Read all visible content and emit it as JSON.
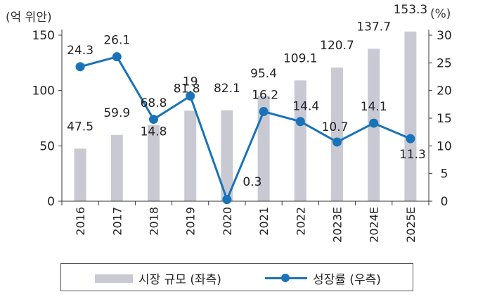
{
  "units": {
    "left": "(억 위안)",
    "right": "(%)"
  },
  "legend": {
    "bar_label": "시장 규모 (좌측)",
    "line_label": "성장률 (우측)"
  },
  "colors": {
    "bar": "#c8c9d3",
    "line": "#1a73b8",
    "axis": "#333333"
  },
  "chart_data": {
    "type": "bar+line",
    "categories": [
      "2016",
      "2017",
      "2018",
      "2019",
      "2020",
      "2021",
      "2022",
      "2023E",
      "2024E",
      "2025E"
    ],
    "series": [
      {
        "name": "시장 규모 (좌측)",
        "type": "bar",
        "axis": "left",
        "values": [
          47.5,
          59.9,
          68.8,
          81.8,
          82.1,
          95.4,
          109.1,
          120.7,
          137.7,
          153.3
        ],
        "labels": [
          "47.5",
          "59.9",
          "68.8",
          "81.8",
          "82.1",
          "95.4",
          "109.1",
          "120.7",
          "137.7",
          "153.3"
        ]
      },
      {
        "name": "성장률 (우측)",
        "type": "line",
        "axis": "right",
        "values": [
          24.3,
          26.1,
          14.8,
          19,
          0.3,
          16.2,
          14.4,
          10.7,
          14.1,
          11.3
        ],
        "labels": [
          "24.3",
          "26.1",
          "14.8",
          "19",
          "0.3",
          "16.2",
          "14.4",
          "10.7",
          "14.1",
          "11.3"
        ]
      }
    ],
    "y_left": {
      "min": 0,
      "max": 150,
      "ticks": [
        "0",
        "50",
        "100",
        "150"
      ]
    },
    "y_right": {
      "min": 0,
      "max": 30,
      "ticks": [
        "0",
        "5",
        "10",
        "15",
        "20",
        "25",
        "30"
      ]
    },
    "grid": false,
    "legend_position": "bottom"
  }
}
